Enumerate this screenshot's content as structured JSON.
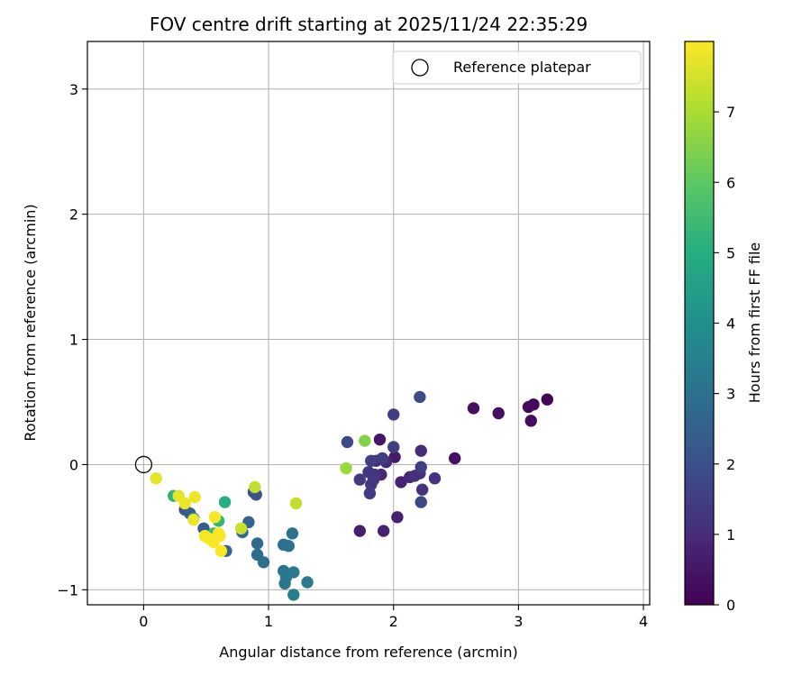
{
  "chart_data": {
    "type": "scatter",
    "title": "FOV centre drift starting at 2025/11/24 22:35:29",
    "xlabel": "Angular distance from reference (arcmin)",
    "ylabel": "Rotation from reference (arcmin)",
    "xlim": [
      -0.45,
      4.05
    ],
    "ylim": [
      -1.12,
      3.38
    ],
    "xticks": [
      0,
      1,
      2,
      3,
      4
    ],
    "yticks": [
      -1,
      0,
      1,
      2,
      3
    ],
    "x_tick_labels": [
      "0",
      "1",
      "2",
      "3",
      "4"
    ],
    "y_tick_labels": [
      "−1",
      "0",
      "1",
      "2",
      "3"
    ],
    "grid": true,
    "legend": {
      "position": "top-right",
      "entries": [
        "Reference platepar"
      ]
    },
    "reference_point": {
      "x": 0,
      "y": 0,
      "label": "Reference platepar"
    },
    "colorbar": {
      "label": "Hours from first FF file",
      "colormap": "viridis",
      "range": [
        0,
        8
      ],
      "ticks": [
        0,
        1,
        2,
        3,
        4,
        5,
        6,
        7
      ],
      "tick_labels": [
        "0",
        "1",
        "2",
        "3",
        "4",
        "5",
        "6",
        "7"
      ]
    },
    "points": [
      {
        "x": 3.23,
        "y": 0.52,
        "hours": 0.1
      },
      {
        "x": 3.12,
        "y": 0.48,
        "hours": 0.15
      },
      {
        "x": 3.08,
        "y": 0.46,
        "hours": 0.2
      },
      {
        "x": 3.1,
        "y": 0.35,
        "hours": 0.25
      },
      {
        "x": 2.84,
        "y": 0.41,
        "hours": 0.3
      },
      {
        "x": 2.64,
        "y": 0.45,
        "hours": 0.35
      },
      {
        "x": 2.49,
        "y": 0.05,
        "hours": 0.4
      },
      {
        "x": 1.89,
        "y": 0.2,
        "hours": 0.5
      },
      {
        "x": 2.01,
        "y": 0.06,
        "hours": 0.6
      },
      {
        "x": 2.03,
        "y": -0.42,
        "hours": 0.7
      },
      {
        "x": 1.73,
        "y": -0.53,
        "hours": 0.7
      },
      {
        "x": 1.92,
        "y": -0.53,
        "hours": 0.75
      },
      {
        "x": 2.06,
        "y": -0.14,
        "hours": 0.8
      },
      {
        "x": 2.13,
        "y": -0.1,
        "hours": 0.85
      },
      {
        "x": 1.9,
        "y": -0.08,
        "hours": 0.9
      },
      {
        "x": 1.94,
        "y": 0.02,
        "hours": 1.0
      },
      {
        "x": 1.86,
        "y": 0.03,
        "hours": 1.0
      },
      {
        "x": 2.22,
        "y": 0.11,
        "hours": 1.0
      },
      {
        "x": 2.21,
        "y": -0.07,
        "hours": 1.05
      },
      {
        "x": 2.17,
        "y": -0.09,
        "hours": 1.1
      },
      {
        "x": 2.33,
        "y": -0.11,
        "hours": 1.2
      },
      {
        "x": 2.23,
        "y": -0.2,
        "hours": 1.2
      },
      {
        "x": 1.8,
        "y": -0.06,
        "hours": 1.3
      },
      {
        "x": 1.85,
        "y": -0.08,
        "hours": 1.3
      },
      {
        "x": 1.84,
        "y": -0.12,
        "hours": 1.3
      },
      {
        "x": 1.82,
        "y": -0.16,
        "hours": 1.35
      },
      {
        "x": 1.81,
        "y": -0.23,
        "hours": 1.4
      },
      {
        "x": 1.73,
        "y": -0.12,
        "hours": 1.4
      },
      {
        "x": 1.82,
        "y": 0.03,
        "hours": 1.45
      },
      {
        "x": 1.91,
        "y": 0.05,
        "hours": 1.45
      },
      {
        "x": 2.0,
        "y": 0.14,
        "hours": 1.5
      },
      {
        "x": 2.0,
        "y": 0.4,
        "hours": 1.5
      },
      {
        "x": 2.22,
        "y": -0.02,
        "hours": 1.5
      },
      {
        "x": 2.22,
        "y": -0.3,
        "hours": 1.7
      },
      {
        "x": 2.21,
        "y": 0.54,
        "hours": 1.8
      },
      {
        "x": 1.63,
        "y": 0.18,
        "hours": 1.8
      },
      {
        "x": 0.88,
        "y": -0.22,
        "hours": 2.0
      },
      {
        "x": 0.9,
        "y": -0.24,
        "hours": 2.1
      },
      {
        "x": 0.33,
        "y": -0.36,
        "hours": 2.2
      },
      {
        "x": 0.48,
        "y": -0.51,
        "hours": 2.3
      },
      {
        "x": 0.37,
        "y": -0.39,
        "hours": 2.4
      },
      {
        "x": 0.84,
        "y": -0.46,
        "hours": 2.6
      },
      {
        "x": 0.66,
        "y": -0.69,
        "hours": 2.7
      },
      {
        "x": 0.79,
        "y": -0.54,
        "hours": 2.75
      },
      {
        "x": 0.91,
        "y": -0.63,
        "hours": 2.8
      },
      {
        "x": 0.91,
        "y": -0.72,
        "hours": 2.85
      },
      {
        "x": 0.96,
        "y": -0.78,
        "hours": 2.9
      },
      {
        "x": 1.12,
        "y": -0.64,
        "hours": 2.9
      },
      {
        "x": 1.16,
        "y": -0.65,
        "hours": 3.0
      },
      {
        "x": 1.19,
        "y": -0.55,
        "hours": 3.1
      },
      {
        "x": 1.12,
        "y": -0.85,
        "hours": 3.1
      },
      {
        "x": 1.13,
        "y": -0.95,
        "hours": 3.2
      },
      {
        "x": 1.14,
        "y": -0.9,
        "hours": 3.2
      },
      {
        "x": 1.2,
        "y": -0.86,
        "hours": 3.3
      },
      {
        "x": 1.31,
        "y": -0.94,
        "hours": 3.3
      },
      {
        "x": 1.2,
        "y": -1.04,
        "hours": 3.4
      },
      {
        "x": 0.4,
        "y": -0.43,
        "hours": 3.6
      },
      {
        "x": 0.54,
        "y": -0.58,
        "hours": 4.0
      },
      {
        "x": 0.65,
        "y": -0.3,
        "hours": 5.0
      },
      {
        "x": 0.24,
        "y": -0.25,
        "hours": 5.2
      },
      {
        "x": 0.6,
        "y": -0.45,
        "hours": 5.3
      },
      {
        "x": 0.56,
        "y": -0.55,
        "hours": 5.5
      },
      {
        "x": 1.62,
        "y": -0.03,
        "hours": 6.8
      },
      {
        "x": 1.77,
        "y": 0.19,
        "hours": 6.5
      },
      {
        "x": 1.22,
        "y": -0.31,
        "hours": 7.3
      },
      {
        "x": 0.89,
        "y": -0.18,
        "hours": 7.3
      },
      {
        "x": 0.78,
        "y": -0.51,
        "hours": 7.4
      },
      {
        "x": 0.1,
        "y": -0.11,
        "hours": 7.7
      },
      {
        "x": 0.28,
        "y": -0.25,
        "hours": 7.7
      },
      {
        "x": 0.41,
        "y": -0.26,
        "hours": 7.8
      },
      {
        "x": 0.33,
        "y": -0.31,
        "hours": 7.8
      },
      {
        "x": 0.4,
        "y": -0.44,
        "hours": 7.8
      },
      {
        "x": 0.57,
        "y": -0.42,
        "hours": 7.9
      },
      {
        "x": 0.49,
        "y": -0.57,
        "hours": 7.9
      },
      {
        "x": 0.52,
        "y": -0.59,
        "hours": 7.9
      },
      {
        "x": 0.56,
        "y": -0.62,
        "hours": 7.95
      },
      {
        "x": 0.6,
        "y": -0.55,
        "hours": 7.95
      },
      {
        "x": 0.61,
        "y": -0.57,
        "hours": 7.95
      },
      {
        "x": 0.62,
        "y": -0.69,
        "hours": 8.0
      }
    ]
  }
}
